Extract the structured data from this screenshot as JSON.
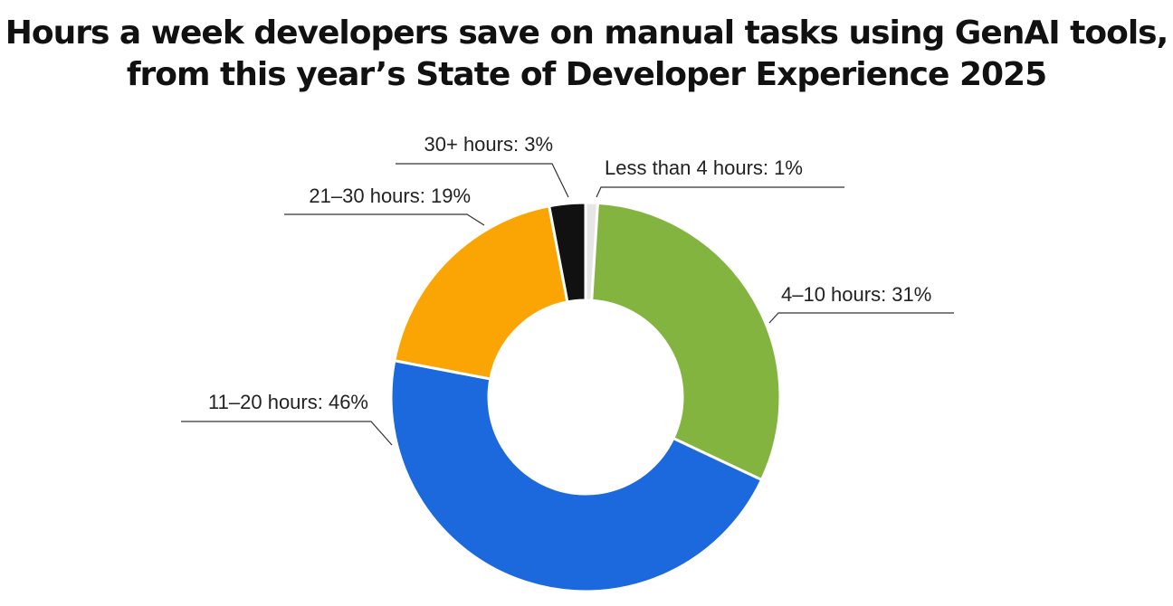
{
  "title": {
    "line1": "Hours a week developers save on manual tasks using GenAI tools,",
    "line2": "from this year’s State of Developer Experience 2025"
  },
  "chart_data": {
    "type": "pie",
    "variant": "donut",
    "title": "Hours a week developers save on manual tasks using GenAI tools, from this year’s State of Developer Experience 2025",
    "categories": [
      "Less than 4 hours",
      "4-10 hours",
      "11-20 hours",
      "21-30 hours",
      "30+ hours"
    ],
    "values": [
      1,
      31,
      46,
      19,
      3
    ],
    "unit": "%",
    "labels": [
      "Less than 4 hours: 1%",
      "4–10 hours: 31%",
      "11–20 hours: 46%",
      "21–30 hours: 19%",
      "30+ hours: 3%"
    ],
    "colors": [
      "#e6e6e6",
      "#84b440",
      "#1b69dd",
      "#fba505",
      "#111111"
    ]
  }
}
